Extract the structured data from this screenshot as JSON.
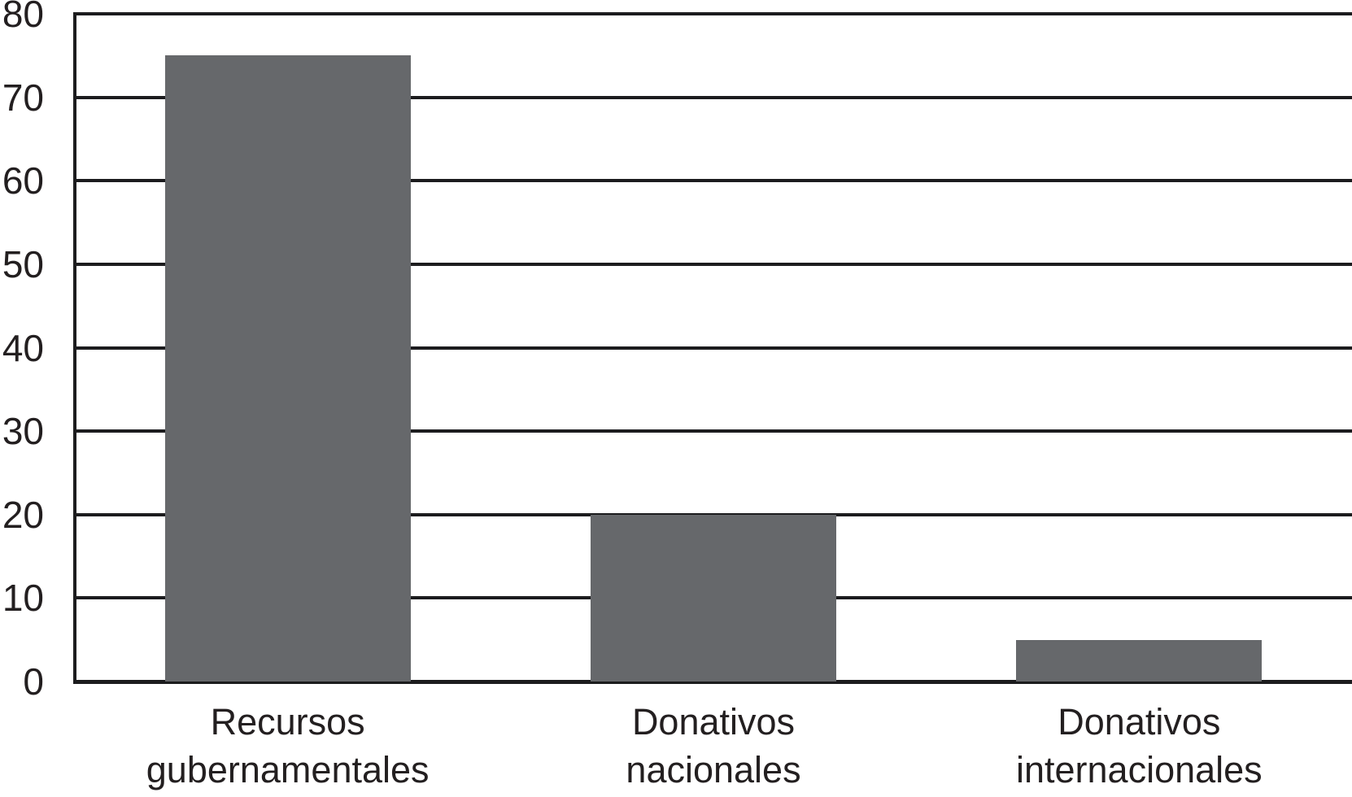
{
  "chart_data": {
    "type": "bar",
    "title": "",
    "xlabel": "",
    "ylabel": "",
    "categories": [
      [
        "Recursos",
        "gubernamentales"
      ],
      [
        "Donativos",
        "nacionales"
      ],
      [
        "Donativos",
        "internacionales"
      ]
    ],
    "values": [
      75,
      20,
      5
    ],
    "ylim": [
      0,
      80
    ],
    "yticks": [
      0,
      10,
      20,
      30,
      40,
      50,
      60,
      70,
      80
    ],
    "grid": "horizontal gridlines every 10 units, spanning full plot width",
    "legend": "none",
    "bar_width_fraction_of_slot": 0.577,
    "colors": {
      "bar_fill": "#66686b",
      "axis_line": "#1c1c1e",
      "gridline": "#1c1c1e",
      "text": "#231f20",
      "background": "#ffffff"
    }
  }
}
